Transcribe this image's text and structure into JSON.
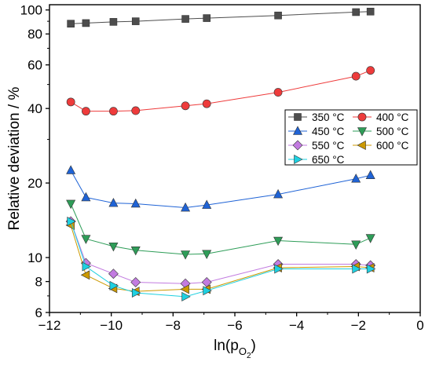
{
  "chart_data": {
    "type": "line",
    "xlabel": "ln(p",
    "xlabel_sub": "O",
    "xlabel_subsub": "2",
    "xlabel_close": ")",
    "ylabel": "Relative deviation / %",
    "xlim": [
      -12,
      0
    ],
    "ylim": [
      6,
      105
    ],
    "yscale": "log",
    "grid": false,
    "legend": "top-right inside",
    "xticks": [
      -12,
      -10,
      -8,
      -6,
      -4,
      -2,
      0
    ],
    "xtick_labels": [
      "−12",
      "−10",
      "−8",
      "−6",
      "−4",
      "−2",
      "0"
    ],
    "yticks": [
      6,
      8,
      10,
      20,
      40,
      60,
      80,
      100
    ],
    "ytick_labels": [
      "6",
      "8",
      "10",
      "20",
      "40",
      "60",
      "80",
      "100"
    ],
    "x": [
      -11.31,
      -10.82,
      -9.93,
      -9.21,
      -7.6,
      -6.91,
      -4.6,
      -2.08,
      -1.61
    ],
    "series": [
      {
        "name": "350 °C",
        "color": "#4d4d4d",
        "marker": "square",
        "values": [
          88,
          88.5,
          89.5,
          90,
          92,
          92.7,
          95,
          98,
          98.5
        ]
      },
      {
        "name": "400 °C",
        "color": "#ee3b3b",
        "marker": "circle",
        "values": [
          42.5,
          39,
          39,
          39.2,
          41,
          41.8,
          46.5,
          54,
          57
        ]
      },
      {
        "name": "450 °C",
        "color": "#1f63d6",
        "marker": "triangle-up",
        "values": [
          22.5,
          17.5,
          16.6,
          16.5,
          15.9,
          16.3,
          18,
          20.8,
          21.5
        ]
      },
      {
        "name": "500 °C",
        "color": "#2e9d58",
        "marker": "triangle-down",
        "values": [
          16.5,
          11.9,
          11.1,
          10.7,
          10.3,
          10.35,
          11.7,
          11.3,
          12
        ]
      },
      {
        "name": "550 °C",
        "color": "#c27be0",
        "marker": "diamond",
        "values": [
          14,
          9.5,
          8.6,
          7.95,
          7.85,
          7.95,
          9.4,
          9.4,
          9.3
        ]
      },
      {
        "name": "600 °C",
        "color": "#cc9900",
        "marker": "triangle-left",
        "values": [
          13.5,
          8.5,
          7.5,
          7.3,
          7.45,
          7.45,
          9.1,
          9.2,
          9.1
        ]
      },
      {
        "name": "650 °C",
        "color": "#1ed0e0",
        "marker": "triangle-right",
        "values": [
          14,
          9.2,
          7.7,
          7.2,
          6.95,
          7.35,
          9,
          9,
          9
        ]
      }
    ]
  }
}
